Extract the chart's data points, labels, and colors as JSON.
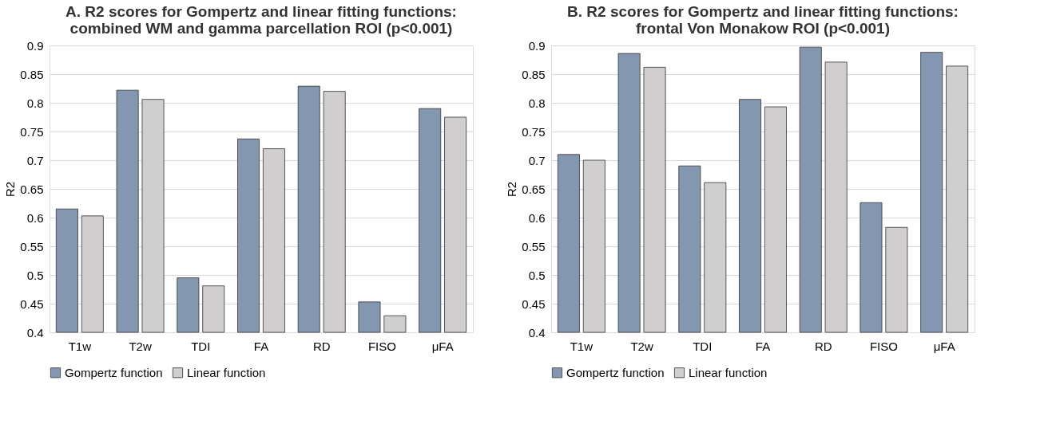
{
  "chart_data": [
    {
      "type": "bar",
      "title": "A. R2 scores for Gompertz and linear fitting functions: combined WM and gamma parcellation ROI (p<0.001)",
      "ylabel": "R2",
      "categories": [
        "T1w",
        "T2w",
        "TDI",
        "FA",
        "RD",
        "FISO",
        "μFA"
      ],
      "series": [
        {
          "name": "Gompertz function",
          "color": "#8497b0",
          "values": [
            0.615,
            0.822,
            0.495,
            0.737,
            0.829,
            0.453,
            0.79
          ]
        },
        {
          "name": "Linear function",
          "color": "#d0cece",
          "values": [
            0.603,
            0.806,
            0.481,
            0.72,
            0.82,
            0.429,
            0.775
          ]
        }
      ],
      "ylim": [
        0.4,
        0.9
      ],
      "yticks": [
        0.4,
        0.45,
        0.5,
        0.55,
        0.6,
        0.65,
        0.7,
        0.75,
        0.8,
        0.85,
        0.9
      ],
      "grid": "y",
      "legend": "bottom"
    },
    {
      "type": "bar",
      "title": "B. R2 scores for Gompertz and linear fitting functions: frontal Von Monakow ROI (p<0.001)",
      "ylabel": "R2",
      "categories": [
        "T1w",
        "T2w",
        "TDI",
        "FA",
        "RD",
        "FISO",
        "μFA"
      ],
      "series": [
        {
          "name": "Gompertz function",
          "color": "#8497b0",
          "values": [
            0.71,
            0.886,
            0.69,
            0.806,
            0.897,
            0.626,
            0.888
          ]
        },
        {
          "name": "Linear function",
          "color": "#d0cece",
          "values": [
            0.7,
            0.862,
            0.661,
            0.793,
            0.871,
            0.583,
            0.864
          ]
        }
      ],
      "ylim": [
        0.4,
        0.9
      ],
      "yticks": [
        0.4,
        0.45,
        0.5,
        0.55,
        0.6,
        0.65,
        0.7,
        0.75,
        0.8,
        0.85,
        0.9
      ],
      "grid": "y",
      "legend": "bottom"
    }
  ]
}
